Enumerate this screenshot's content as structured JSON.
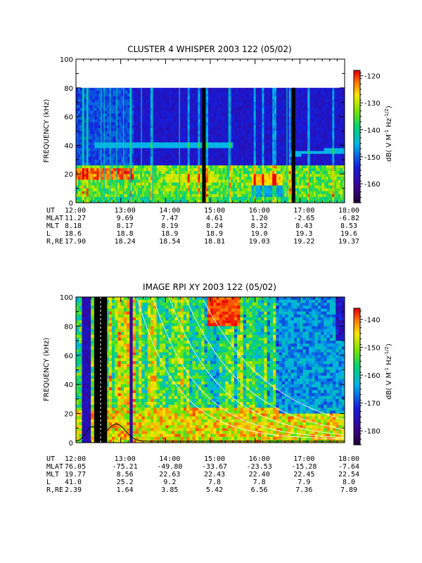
{
  "chart_data": [
    {
      "type": "heatmap",
      "title": "CLUSTER 4 WHISPER 2003 122 (05/02)",
      "ylabel": "FREQUENCY (kHz)",
      "ylim": [
        0,
        100
      ],
      "yticks": [
        "0",
        "20",
        "40",
        "60",
        "80",
        "100"
      ],
      "xlim": [
        "12:00",
        "18:00"
      ],
      "xticks": [
        "12:00",
        "13:00",
        "14:00",
        "15:00",
        "16:00",
        "17:00",
        "18:00"
      ],
      "data_top_khz": 80,
      "colorbar": {
        "label": "dB( V M⁻¹ Hz⁻¹ᐟ²)",
        "label_text": "dB( V M",
        "label_sup1": "-1",
        "label_mid": " Hz",
        "label_sup2": "-1/2",
        "label_end": ")",
        "range": [
          -167,
          -118
        ],
        "ticks": [
          "-120",
          "-130",
          "-140",
          "-150",
          "-160"
        ]
      },
      "ephemeris": {
        "rows": [
          {
            "name": "UT",
            "values": [
              "12:00",
              "13:00",
              "14:00",
              "15:00",
              "16:00",
              "17:00",
              "18:00"
            ]
          },
          {
            "name": "MLAT",
            "values": [
              "11.27",
              "9.69",
              "7.47",
              "4.61",
              "1.20",
              "-2.65",
              "-6.82"
            ]
          },
          {
            "name": "MLT",
            "values": [
              "8.18",
              "8.17",
              "8.19",
              "8.24",
              "8.32",
              "8.43",
              "8.53"
            ]
          },
          {
            "name": "L",
            "values": [
              "18.6",
              "18.8",
              "18.9",
              "18.9",
              "19.0",
              "19.3",
              "19.6"
            ]
          },
          {
            "name": "R,RE",
            "values": [
              "17.90",
              "18.24",
              "18.54",
              "18.81",
              "19.03",
              "19.22",
              "19.37"
            ]
          }
        ]
      },
      "data_gaps_ut": [
        14.85,
        16.85
      ],
      "features": {
        "band_low_khz": [
          10,
          25
        ],
        "hot_band_ut": [
          12.0,
          13.3
        ],
        "line_khz": 40
      }
    },
    {
      "type": "heatmap",
      "title": "IMAGE RPI XY 2003 122 (05/02)",
      "ylabel": "FREQUENCY (kHz)",
      "ylim": [
        0,
        100
      ],
      "yticks": [
        "0",
        "20",
        "40",
        "60",
        "80",
        "100"
      ],
      "xlim": [
        "12:00",
        "18:00"
      ],
      "xticks": [
        "12:00",
        "13:00",
        "14:00",
        "15:00",
        "16:00",
        "17:00",
        "18:00"
      ],
      "colorbar": {
        "label_text": "dB( V M",
        "label_sup1": "-1",
        "label_mid": " Hz",
        "label_sup2": "-1/2",
        "label_end": ")",
        "range": [
          -185,
          -136
        ],
        "ticks": [
          "-140",
          "-150",
          "-160",
          "-170",
          "-180"
        ]
      },
      "ephemeris": {
        "rows": [
          {
            "name": "UT",
            "values": [
              "12:00",
              "13:00",
              "14:00",
              "15:00",
              "16:00",
              "17:00",
              "18:00"
            ]
          },
          {
            "name": "MLAT",
            "values": [
              "76.05",
              "-75.21",
              "-49.80",
              "-33.67",
              "-23.53",
              "-15.28",
              "-7.64"
            ]
          },
          {
            "name": "MLT",
            "values": [
              "19.77",
              "8.56",
              "22.63",
              "22.43",
              "22.40",
              "22.45",
              "22.54"
            ]
          },
          {
            "name": "L",
            "values": [
              "41.0",
              "25.2",
              "9.2",
              "7.8",
              "7.8",
              "7.9",
              "8.0"
            ]
          },
          {
            "name": "R,RE",
            "values": [
              "2.39",
              "1.64",
              "3.85",
              "5.42",
              "6.56",
              "7.36",
              "7.89"
            ]
          }
        ]
      },
      "data_gaps_ut": [
        12.5,
        12.6
      ],
      "features": {
        "hot_region_ut": [
          14.9,
          15.7
        ],
        "hot_region_khz": [
          80,
          100
        ]
      }
    }
  ]
}
